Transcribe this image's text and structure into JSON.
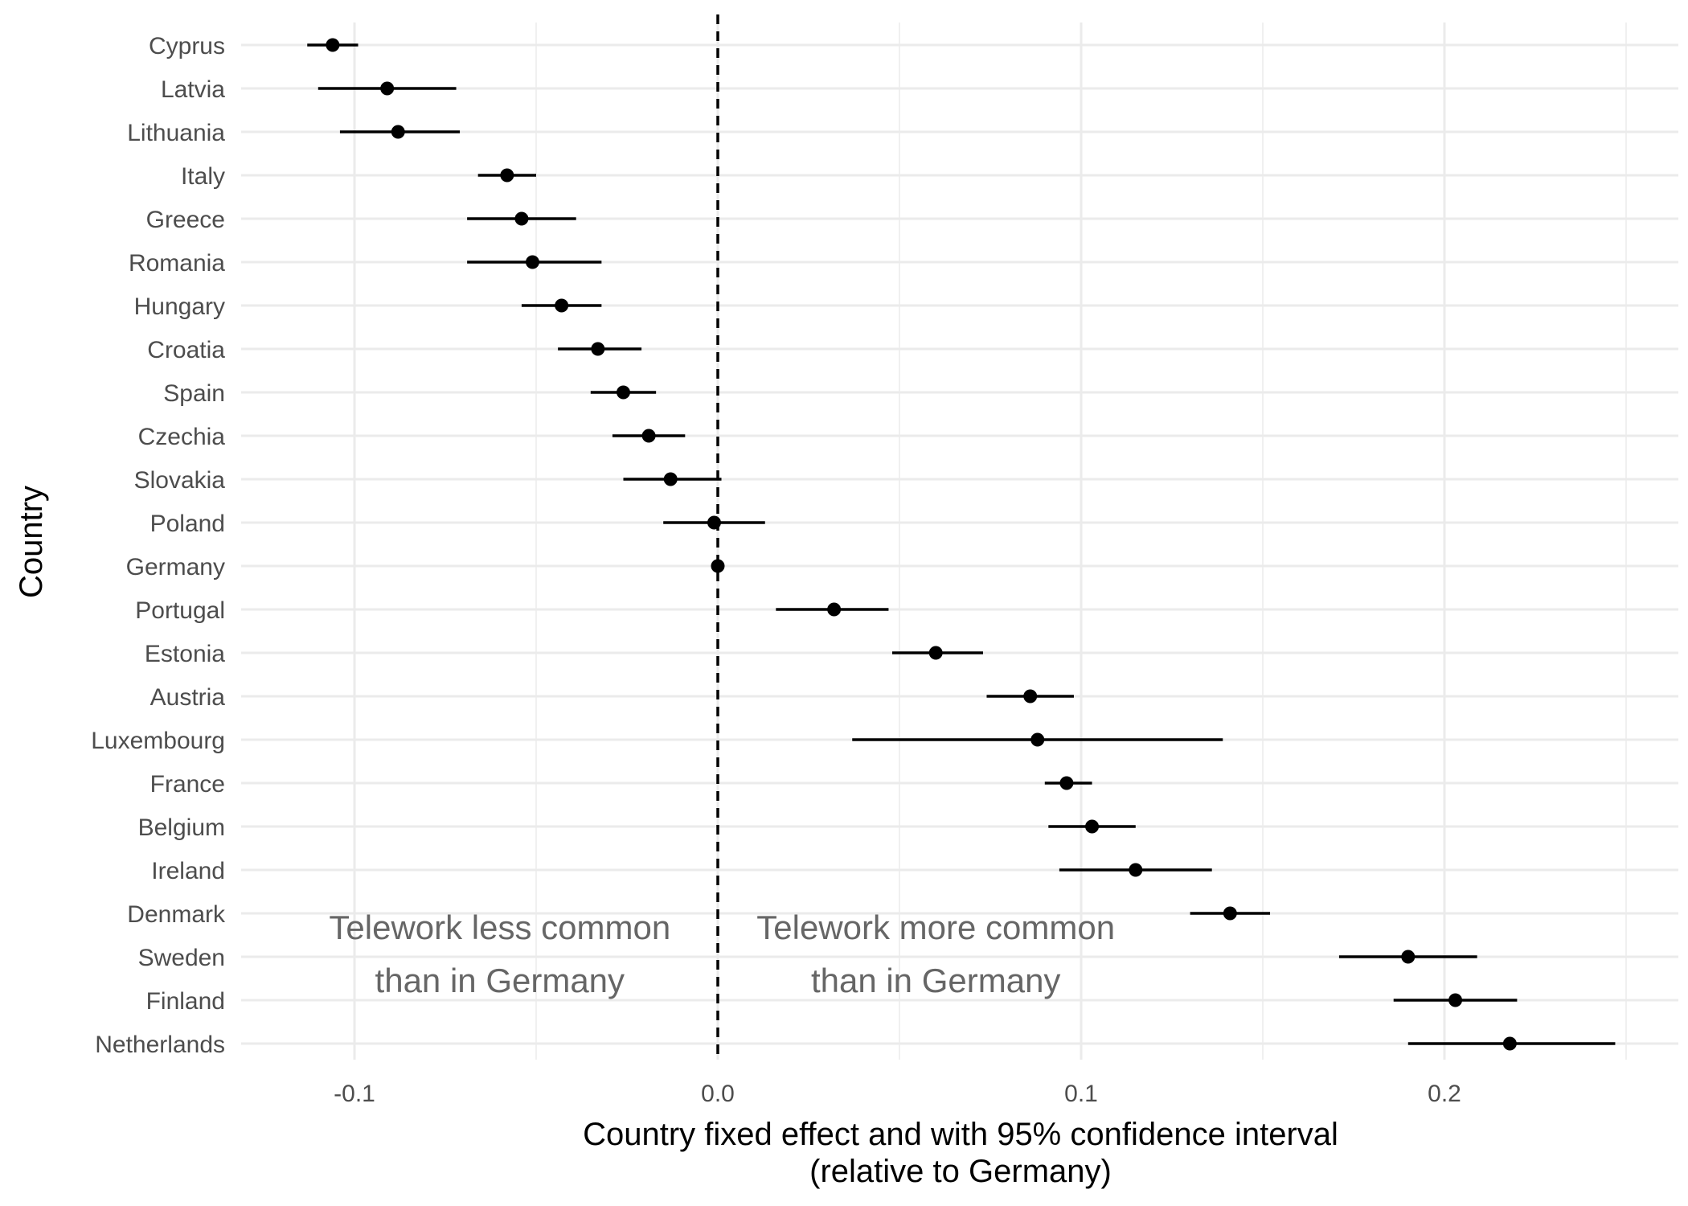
{
  "chart_data": {
    "type": "scatter",
    "subtype": "point-range (forest plot)",
    "xlabel_line1": "Country fixed effect and with 95% confidence interval",
    "xlabel_line2": "(relative to Germany)",
    "ylabel": "Country",
    "xlim": [
      -0.13,
      0.262
    ],
    "x_ticks": [
      -0.1,
      0.0,
      0.1,
      0.2
    ],
    "x_tick_labels": [
      "-0.1",
      "0.0",
      "0.1",
      "0.2"
    ],
    "reference_line": {
      "x": 0,
      "style": "dashed"
    },
    "grid": true,
    "points": [
      {
        "country": "Cyprus",
        "estimate": -0.106,
        "lower": -0.113,
        "upper": -0.099
      },
      {
        "country": "Latvia",
        "estimate": -0.091,
        "lower": -0.11,
        "upper": -0.072
      },
      {
        "country": "Lithuania",
        "estimate": -0.088,
        "lower": -0.104,
        "upper": -0.071
      },
      {
        "country": "Italy",
        "estimate": -0.058,
        "lower": -0.066,
        "upper": -0.05
      },
      {
        "country": "Greece",
        "estimate": -0.054,
        "lower": -0.069,
        "upper": -0.039
      },
      {
        "country": "Romania",
        "estimate": -0.051,
        "lower": -0.069,
        "upper": -0.032
      },
      {
        "country": "Hungary",
        "estimate": -0.043,
        "lower": -0.054,
        "upper": -0.032
      },
      {
        "country": "Croatia",
        "estimate": -0.033,
        "lower": -0.044,
        "upper": -0.021
      },
      {
        "country": "Spain",
        "estimate": -0.026,
        "lower": -0.035,
        "upper": -0.017
      },
      {
        "country": "Czechia",
        "estimate": -0.019,
        "lower": -0.029,
        "upper": -0.009
      },
      {
        "country": "Slovakia",
        "estimate": -0.013,
        "lower": -0.026,
        "upper": 0.001
      },
      {
        "country": "Poland",
        "estimate": -0.001,
        "lower": -0.015,
        "upper": 0.013
      },
      {
        "country": "Germany",
        "estimate": 0.0,
        "lower": 0.0,
        "upper": 0.0
      },
      {
        "country": "Portugal",
        "estimate": 0.032,
        "lower": 0.016,
        "upper": 0.047
      },
      {
        "country": "Estonia",
        "estimate": 0.06,
        "lower": 0.048,
        "upper": 0.073
      },
      {
        "country": "Austria",
        "estimate": 0.086,
        "lower": 0.074,
        "upper": 0.098
      },
      {
        "country": "Luxembourg",
        "estimate": 0.088,
        "lower": 0.037,
        "upper": 0.139
      },
      {
        "country": "France",
        "estimate": 0.096,
        "lower": 0.09,
        "upper": 0.103
      },
      {
        "country": "Belgium",
        "estimate": 0.103,
        "lower": 0.091,
        "upper": 0.115
      },
      {
        "country": "Ireland",
        "estimate": 0.115,
        "lower": 0.094,
        "upper": 0.136
      },
      {
        "country": "Denmark",
        "estimate": 0.141,
        "lower": 0.13,
        "upper": 0.152
      },
      {
        "country": "Sweden",
        "estimate": 0.19,
        "lower": 0.171,
        "upper": 0.209
      },
      {
        "country": "Finland",
        "estimate": 0.203,
        "lower": 0.186,
        "upper": 0.22
      },
      {
        "country": "Netherlands",
        "estimate": 0.218,
        "lower": 0.19,
        "upper": 0.247
      }
    ],
    "annotations": [
      {
        "lines": [
          "Telework less common",
          "than in Germany"
        ],
        "x": -0.06
      },
      {
        "lines": [
          "Telework more common",
          "than in Germany"
        ],
        "x": 0.06
      }
    ],
    "colors": {
      "points": "#000000",
      "intervals": "#000000",
      "grid": "#ebebeb",
      "reference_line": "#000000",
      "tick_text": "#4d4d4d",
      "annotation_text": "#666666"
    }
  }
}
